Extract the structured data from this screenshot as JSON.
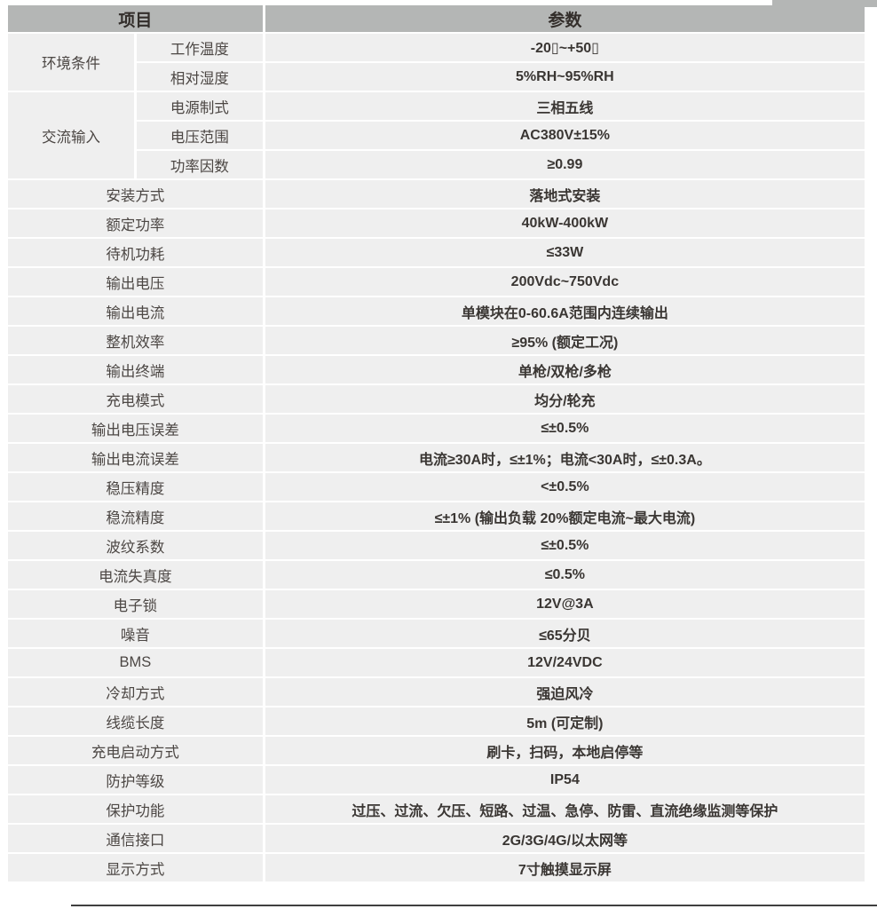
{
  "colors": {
    "page_background": "#ffffff",
    "header_background": "#b4b6b5",
    "row_background": "#efefef",
    "separator": "#ffffff",
    "header_text": "#332e2b",
    "label_text": "#4c4744",
    "value_text": "#3a3633",
    "bottom_rule": "#3f3f3f"
  },
  "table": {
    "header": {
      "item": "项目",
      "param": "参数"
    },
    "groups": [
      {
        "name": "环境条件",
        "rows": [
          {
            "label": "工作温度",
            "value": "-20▯~+50▯"
          },
          {
            "label": "相对湿度",
            "value": "5%RH~95%RH"
          }
        ]
      },
      {
        "name": "交流输入",
        "rows": [
          {
            "label": "电源制式",
            "value": "三相五线"
          },
          {
            "label": "电压范围",
            "value": "AC380V±15%"
          },
          {
            "label": "功率因数",
            "value": "≥0.99"
          }
        ]
      }
    ],
    "rows": [
      {
        "label": "安装方式",
        "value": "落地式安装"
      },
      {
        "label": "额定功率",
        "value": "40kW-400kW"
      },
      {
        "label": "待机功耗",
        "value": "≤33W"
      },
      {
        "label": "输出电压",
        "value": "200Vdc~750Vdc"
      },
      {
        "label": "输出电流",
        "value": "单模块在0-60.6A范围内连续输出"
      },
      {
        "label": "整机效率",
        "value": "≥95% (额定工况)"
      },
      {
        "label": "输出终端",
        "value": "单枪/双枪/多枪"
      },
      {
        "label": "充电模式",
        "value": "均分/轮充"
      },
      {
        "label": "输出电压误差",
        "value": "≤±0.5%"
      },
      {
        "label": "输出电流误差",
        "value": "电流≥30A时，≤±1%；电流<30A时，≤±0.3A。"
      },
      {
        "label": "稳压精度",
        "value": "<±0.5%"
      },
      {
        "label": "稳流精度",
        "value": "≤±1% (输出负载 20%额定电流~最大电流)"
      },
      {
        "label": "波纹系数",
        "value": "≤±0.5%"
      },
      {
        "label": "电流失真度",
        "value": "≤0.5%"
      },
      {
        "label": "电子锁",
        "value": "12V@3A"
      },
      {
        "label": "噪音",
        "value": "≤65分贝"
      },
      {
        "label": "BMS",
        "value": "12V/24VDC"
      },
      {
        "label": "冷却方式",
        "value": "强迫风冷"
      },
      {
        "label": "线缆长度",
        "value": "5m (可定制)"
      },
      {
        "label": "充电启动方式",
        "value": "刷卡，扫码，本地启停等"
      },
      {
        "label": "防护等级",
        "value": "IP54"
      },
      {
        "label": "保护功能",
        "value": "过压、过流、欠压、短路、过温、急停、防雷、直流绝缘监测等保护"
      },
      {
        "label": "通信接口",
        "value": "2G/3G/4G/以太网等"
      },
      {
        "label": "显示方式",
        "value": "7寸触摸显示屏"
      }
    ]
  }
}
